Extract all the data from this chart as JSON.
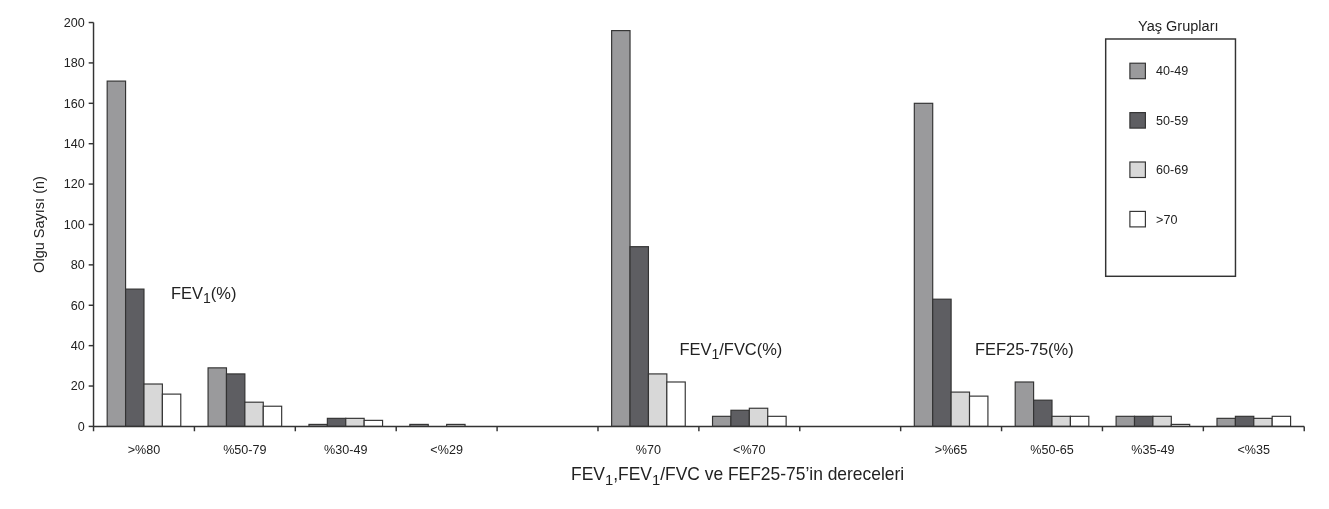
{
  "chart_data": {
    "type": "bar",
    "xlabel": "FEV$_{1}$,FEV$_{1}$/FVC ve FEF25-75’in dereceleri",
    "ylabel": "Olgu Sayısı (n)",
    "legend_title": "Yaş Grupları",
    "annotations": [
      "FEV$_{1}$(%)",
      "FEV$_{1}$/FVC(%)",
      "FEF25-75(%)"
    ],
    "categories": [
      ">%80",
      "%50-79",
      "%30-49",
      "<%29",
      null,
      "%70",
      "<%70",
      null,
      ">%65",
      "%50-65",
      "%35-49",
      "<%35"
    ],
    "series": [
      {
        "name": "40-49",
        "color": "#9a9a9c",
        "values": [
          171,
          29,
          1,
          1,
          null,
          196,
          5,
          null,
          160,
          22,
          5,
          4
        ]
      },
      {
        "name": "50-59",
        "color": "#5e5e62",
        "values": [
          68,
          26,
          4,
          0,
          null,
          89,
          8,
          null,
          63,
          13,
          5,
          5
        ]
      },
      {
        "name": "60-69",
        "color": "#d8d8d8",
        "values": [
          21,
          12,
          4,
          1,
          null,
          26,
          9,
          null,
          17,
          5,
          5,
          4
        ]
      },
      {
        "name": ">70",
        "color": "#ffffff",
        "values": [
          16,
          10,
          3,
          0,
          null,
          22,
          5,
          null,
          15,
          5,
          1,
          5
        ]
      }
    ],
    "ylim": [
      0,
      200
    ],
    "yticks": [
      0,
      20,
      40,
      60,
      80,
      100,
      120,
      140,
      160,
      180,
      200
    ],
    "legend": "top right"
  }
}
